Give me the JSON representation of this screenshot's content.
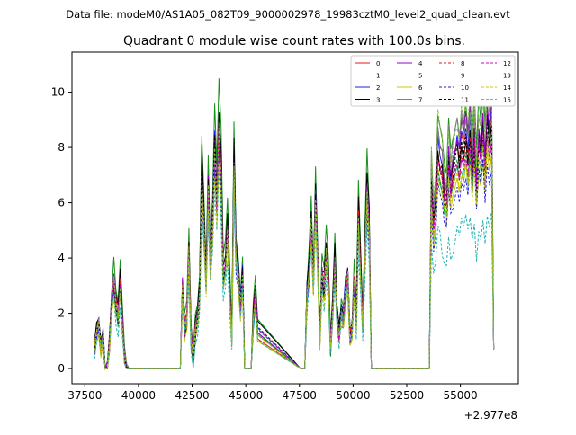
{
  "figure": {
    "suptitle": "Data file: modeM0/AS1A05_082T09_9000002978_19983cztM0_level2_quad_clean.evt",
    "title": "Quadrant 0 module wise count rates with 100.0s bins."
  },
  "chart_data": {
    "type": "line",
    "title": "Quadrant 0 module wise count rates with 100.0s bins.",
    "xlabel": "",
    "ylabel": "",
    "x_offset_label": "+2.977e8",
    "xlim": [
      36900,
      57700
    ],
    "ylim": [
      -0.55,
      11.45
    ],
    "x_ticks": [
      37500,
      40000,
      42500,
      45000,
      47500,
      50000,
      52500,
      55000
    ],
    "x_tick_labels": [
      "37500",
      "40000",
      "42500",
      "45000",
      "47500",
      "50000",
      "52500",
      "55000"
    ],
    "y_ticks": [
      0,
      2,
      4,
      6,
      8,
      10
    ],
    "y_tick_labels": [
      "0",
      "2",
      "4",
      "6",
      "8",
      "10"
    ],
    "grid": false,
    "legend_placement": "top-right",
    "legend_columns": 4,
    "base_x": [
      37950,
      38050,
      38150,
      38250,
      38350,
      38450,
      38550,
      38650,
      38750,
      38850,
      38950,
      39050,
      39150,
      39250,
      39350,
      39450,
      39550,
      39650,
      39750,
      39850,
      41850,
      41950,
      42050,
      42150,
      42250,
      42350,
      42450,
      42550,
      42650,
      42750,
      42850,
      42950,
      43050,
      43150,
      43250,
      43350,
      43450,
      43550,
      43650,
      43750,
      43850,
      43950,
      44050,
      44150,
      44250,
      44350,
      44450,
      44550,
      44650,
      44750,
      44850,
      44950,
      45050,
      45150,
      45250,
      45350,
      45450,
      45550,
      47550,
      47650,
      47750,
      47850,
      47950,
      48050,
      48150,
      48250,
      48350,
      48450,
      48550,
      48650,
      48750,
      48850,
      48950,
      49050,
      49150,
      49250,
      49350,
      49450,
      49550,
      49650,
      49750,
      49850,
      49950,
      50050,
      50150,
      50250,
      50350,
      50450,
      50550,
      50650,
      50750,
      50850,
      53450,
      53550,
      53650,
      53750,
      53850,
      53950,
      54050,
      54150,
      54250,
      54350,
      54450,
      54550,
      54650,
      54750,
      54850,
      54950,
      55050,
      55150,
      55250,
      55350,
      55450,
      55550,
      55650,
      55750,
      55850,
      55950,
      56050,
      56150,
      56250,
      56350,
      56450,
      56550
    ],
    "base_y": [
      1.0,
      1.6,
      1.8,
      1.0,
      1.3,
      0.0,
      0.1,
      1.2,
      2.7,
      3.5,
      2.6,
      2.1,
      3.4,
      2.0,
      0.6,
      0.15,
      0.0,
      0.0,
      0.0,
      0.0,
      0.0,
      0.0,
      3.2,
      1.7,
      2.0,
      4.5,
      1.3,
      0.6,
      1.6,
      2.1,
      3.0,
      7.6,
      5.8,
      3.5,
      7.0,
      4.2,
      5.6,
      8.5,
      6.5,
      9.2,
      7.5,
      3.5,
      4.0,
      5.5,
      3.2,
      1.3,
      8.0,
      4.5,
      3.8,
      2.5,
      3.7,
      0.0,
      0.0,
      0.0,
      0.0,
      2.0,
      3.0,
      1.6,
      0.0,
      0.0,
      0.0,
      3.0,
      4.0,
      5.6,
      3.4,
      6.6,
      4.3,
      1.3,
      3.6,
      3.2,
      4.5,
      3.5,
      1.0,
      2.4,
      4.2,
      2.2,
      1.5,
      2.4,
      2.1,
      3.2,
      3.6,
      1.5,
      1.7,
      3.4,
      2.0,
      5.9,
      3.8,
      1.8,
      4.5,
      6.9,
      5.5,
      0.0,
      0.0,
      0.0,
      6.8,
      5.2,
      6.0,
      7.8,
      7.3,
      7.0,
      6.2,
      6.0,
      7.6,
      6.5,
      7.0,
      7.4,
      7.8,
      7.2,
      8.0,
      7.6,
      8.2,
      7.4,
      8.4,
      7.0,
      8.3,
      6.5,
      8.1,
      7.6,
      8.6,
      7.3,
      8.8,
      8.0,
      8.7,
      8.2
    ],
    "series": [
      {
        "name": "0",
        "color": "#e31a1c",
        "style": "solid",
        "scale": 0.95,
        "end_scale": 1.05
      },
      {
        "name": "1",
        "color": "#1a8f1a",
        "style": "solid",
        "scale": 1.15,
        "end_scale": 1.2
      },
      {
        "name": "2",
        "color": "#1f1fe0",
        "style": "solid",
        "scale": 1.0,
        "end_scale": 1.08
      },
      {
        "name": "3",
        "color": "#000000",
        "style": "solid",
        "scale": 1.05,
        "end_scale": 1.05
      },
      {
        "name": "4",
        "color": "#9900cc",
        "style": "solid",
        "scale": 0.98,
        "end_scale": 1.12
      },
      {
        "name": "5",
        "color": "#1fb39a",
        "style": "solid",
        "scale": 0.88,
        "end_scale": 0.95
      },
      {
        "name": "6",
        "color": "#c8c800",
        "style": "solid",
        "scale": 0.9,
        "end_scale": 0.92
      },
      {
        "name": "7",
        "color": "#808080",
        "style": "solid",
        "scale": 0.93,
        "end_scale": 1.16
      },
      {
        "name": "8",
        "color": "#e31a1c",
        "style": "dashed",
        "scale": 0.96,
        "end_scale": 1.0
      },
      {
        "name": "9",
        "color": "#1a8f1a",
        "style": "dashed",
        "scale": 0.92,
        "end_scale": 0.96
      },
      {
        "name": "10",
        "color": "#1f1fe0",
        "style": "dashed",
        "scale": 0.86,
        "end_scale": 0.88
      },
      {
        "name": "11",
        "color": "#000000",
        "style": "dashed",
        "scale": 0.97,
        "end_scale": 1.02
      },
      {
        "name": "12",
        "color": "#cc00cc",
        "style": "dashed",
        "scale": 0.94,
        "end_scale": 0.99
      },
      {
        "name": "13",
        "color": "#1fb3b3",
        "style": "dashed",
        "scale": 0.78,
        "end_scale": 0.66
      },
      {
        "name": "14",
        "color": "#c8c800",
        "style": "dashed",
        "scale": 0.85,
        "end_scale": 0.93
      },
      {
        "name": "15",
        "color": "#7fbf3f",
        "style": "dashed",
        "scale": 0.95,
        "end_scale": 1.18
      }
    ]
  }
}
